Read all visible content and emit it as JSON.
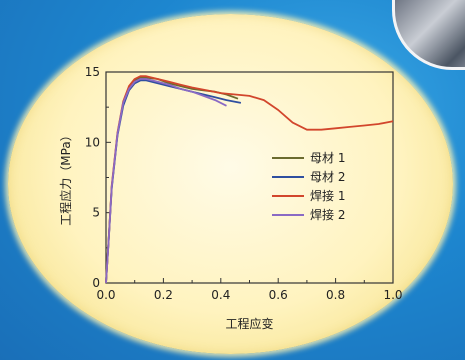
{
  "colors": {
    "background": "#1d86cf",
    "panel": "#fff3bf",
    "axis": "#333333"
  },
  "chart_data": {
    "type": "line",
    "title": "",
    "xlabel": "工程应变",
    "ylabel": "工程应力（MPa）",
    "xlim": [
      0,
      1.0
    ],
    "ylim": [
      0,
      15
    ],
    "xticks": [
      "0.0",
      "0.2",
      "0.4",
      "0.6",
      "0.8",
      "1.0"
    ],
    "yticks": [
      "0",
      "5",
      "10",
      "15"
    ],
    "legend_position": "center-right",
    "grid": false,
    "series": [
      {
        "name": "母材 1",
        "color": "#6b6b2e",
        "x": [
          0,
          0.01,
          0.02,
          0.04,
          0.06,
          0.08,
          0.1,
          0.12,
          0.14,
          0.18,
          0.22,
          0.26,
          0.3,
          0.34,
          0.38,
          0.42,
          0.46
        ],
        "y": [
          0,
          3.4,
          6.8,
          10.6,
          12.8,
          13.9,
          14.4,
          14.6,
          14.6,
          14.5,
          14.2,
          14.0,
          13.8,
          13.7,
          13.6,
          13.4,
          13.1
        ]
      },
      {
        "name": "母材 2",
        "color": "#2f4fa0",
        "x": [
          0,
          0.01,
          0.02,
          0.04,
          0.06,
          0.08,
          0.1,
          0.12,
          0.14,
          0.18,
          0.22,
          0.26,
          0.3,
          0.34,
          0.38,
          0.42,
          0.47
        ],
        "y": [
          0,
          3.3,
          6.7,
          10.5,
          12.6,
          13.7,
          14.2,
          14.4,
          14.4,
          14.2,
          14.0,
          13.8,
          13.6,
          13.4,
          13.2,
          13.0,
          12.8
        ]
      },
      {
        "name": "焊接 1",
        "color": "#d2462c",
        "x": [
          0,
          0.01,
          0.02,
          0.04,
          0.06,
          0.08,
          0.1,
          0.12,
          0.14,
          0.18,
          0.22,
          0.26,
          0.3,
          0.35,
          0.4,
          0.45,
          0.5,
          0.55,
          0.6,
          0.65,
          0.7,
          0.75,
          0.8,
          0.85,
          0.9,
          0.95,
          1.0
        ],
        "y": [
          0,
          3.4,
          6.9,
          10.7,
          12.9,
          14.0,
          14.5,
          14.7,
          14.7,
          14.5,
          14.3,
          14.1,
          13.9,
          13.7,
          13.5,
          13.4,
          13.3,
          13.0,
          12.3,
          11.4,
          10.9,
          10.9,
          11.0,
          11.1,
          11.2,
          11.3,
          11.5
        ]
      },
      {
        "name": "焊接 2",
        "color": "#8a6ac4",
        "x": [
          0,
          0.01,
          0.02,
          0.04,
          0.06,
          0.08,
          0.1,
          0.12,
          0.14,
          0.18,
          0.22,
          0.26,
          0.3,
          0.34,
          0.38,
          0.42
        ],
        "y": [
          0,
          3.3,
          6.8,
          10.6,
          12.8,
          13.8,
          14.3,
          14.5,
          14.5,
          14.3,
          14.1,
          13.8,
          13.6,
          13.3,
          13.0,
          12.6
        ]
      }
    ]
  }
}
